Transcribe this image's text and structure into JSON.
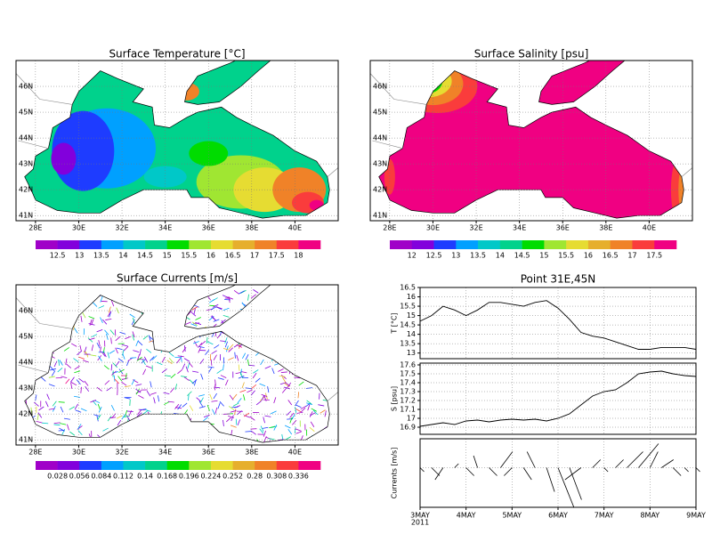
{
  "maps": [
    {
      "title": "Surface Temperature [°C]",
      "lonlim": [
        27.1,
        42
      ],
      "latlim": [
        40.8,
        47
      ],
      "lonticks": [
        {
          "value": 28,
          "label": "28E"
        },
        {
          "value": 30,
          "label": "30E"
        },
        {
          "value": 32,
          "label": "32E"
        },
        {
          "value": 34,
          "label": "34E"
        },
        {
          "value": 36,
          "label": "36E"
        },
        {
          "value": 38,
          "label": "38E"
        },
        {
          "value": 40,
          "label": "40E"
        }
      ],
      "latticks": [
        {
          "value": 41,
          "label": "41N"
        },
        {
          "value": 42,
          "label": "42N"
        },
        {
          "value": 43,
          "label": "43N"
        },
        {
          "value": 44,
          "label": "44N"
        },
        {
          "value": 45,
          "label": "45N"
        },
        {
          "value": 46,
          "label": "46N"
        }
      ],
      "colorbar": {
        "colors": [
          "#a000c8",
          "#8200dc",
          "#1e3cff",
          "#00a0ff",
          "#00c8c8",
          "#00d28c",
          "#00dc00",
          "#a0e632",
          "#e6dc32",
          "#e6af2d",
          "#f08228",
          "#fa3c3c",
          "#f00082"
        ],
        "labels": [
          12.5,
          13,
          13.5,
          14,
          14.5,
          15,
          15.5,
          16,
          16.5,
          17,
          17.5,
          18
        ]
      }
    },
    {
      "title": "Surface Salinity [psu]",
      "lonlim": [
        27.1,
        42
      ],
      "latlim": [
        40.8,
        47
      ],
      "lonticks": [
        {
          "value": 28,
          "label": "28E"
        },
        {
          "value": 30,
          "label": "30E"
        },
        {
          "value": 32,
          "label": "32E"
        },
        {
          "value": 34,
          "label": "34E"
        },
        {
          "value": 36,
          "label": "36E"
        },
        {
          "value": 38,
          "label": "38E"
        },
        {
          "value": 40,
          "label": "40E"
        }
      ],
      "latticks": [
        {
          "value": 41,
          "label": "41N"
        },
        {
          "value": 42,
          "label": "42N"
        },
        {
          "value": 43,
          "label": "43N"
        },
        {
          "value": 44,
          "label": "44N"
        },
        {
          "value": 45,
          "label": "45N"
        },
        {
          "value": 46,
          "label": "46N"
        }
      ],
      "colorbar": {
        "colors": [
          "#a000c8",
          "#8200dc",
          "#1e3cff",
          "#00a0ff",
          "#00c8c8",
          "#00d28c",
          "#00dc00",
          "#a0e632",
          "#e6dc32",
          "#e6af2d",
          "#f08228",
          "#fa3c3c",
          "#f00082"
        ],
        "labels": [
          12,
          12.5,
          13,
          13.5,
          14,
          14.5,
          15,
          15.5,
          16,
          16.5,
          17,
          17.5
        ]
      }
    },
    {
      "title": "Surface Currents [m/s]",
      "lonlim": [
        27.1,
        42
      ],
      "latlim": [
        40.8,
        47
      ],
      "lonticks": [
        {
          "value": 28,
          "label": "28E"
        },
        {
          "value": 30,
          "label": "30E"
        },
        {
          "value": 32,
          "label": "32E"
        },
        {
          "value": 34,
          "label": "34E"
        },
        {
          "value": 36,
          "label": "36E"
        },
        {
          "value": 38,
          "label": "38E"
        },
        {
          "value": 40,
          "label": "40E"
        }
      ],
      "latticks": [
        {
          "value": 41,
          "label": "41N"
        },
        {
          "value": 42,
          "label": "42N"
        },
        {
          "value": 43,
          "label": "43N"
        },
        {
          "value": 44,
          "label": "44N"
        },
        {
          "value": 45,
          "label": "45N"
        },
        {
          "value": 46,
          "label": "46N"
        }
      ],
      "colorbar": {
        "colors": [
          "#a000c8",
          "#8200dc",
          "#1e3cff",
          "#00a0ff",
          "#00c8c8",
          "#00d28c",
          "#00dc00",
          "#a0e632",
          "#e6dc32",
          "#e6af2d",
          "#f08228",
          "#fa3c3c",
          "#f00082"
        ],
        "labels": [
          0.028,
          0.056,
          0.084,
          0.112,
          0.14,
          0.168,
          0.196,
          0.224,
          0.252,
          0.28,
          0.308,
          0.336
        ]
      }
    }
  ],
  "point": {
    "title": "Point 31E,45N",
    "xlim": [
      3,
      9
    ],
    "xticks": [
      {
        "value": 3,
        "label": "3MAY"
      },
      {
        "value": 4,
        "label": "4MAY"
      },
      {
        "value": 5,
        "label": "5MAY"
      },
      {
        "value": 6,
        "label": "6MAY"
      },
      {
        "value": 7,
        "label": "7MAY"
      },
      {
        "value": 8,
        "label": "8MAY"
      },
      {
        "value": 9,
        "label": "9MAY"
      }
    ],
    "year": "2011",
    "x": [
      3,
      3.25,
      3.5,
      3.75,
      4,
      4.25,
      4.5,
      4.75,
      5,
      5.25,
      5.5,
      5.75,
      6,
      6.25,
      6.5,
      6.75,
      7,
      7.25,
      7.5,
      7.75,
      8,
      8.25,
      8.5,
      8.75,
      9
    ],
    "panels": [
      {
        "ylabel": "T [°C]",
        "ylim": [
          12.7,
          16.5
        ],
        "yticks": [
          13,
          13.5,
          14,
          14.5,
          15,
          15.5,
          16,
          16.5
        ],
        "values": [
          14.7,
          15.0,
          15.5,
          15.3,
          15.0,
          15.3,
          15.7,
          15.7,
          15.6,
          15.5,
          15.7,
          15.8,
          15.4,
          14.8,
          14.1,
          13.9,
          13.8,
          13.6,
          13.4,
          13.2,
          13.2,
          13.3,
          13.3,
          13.3,
          13.2
        ]
      },
      {
        "ylabel": "S [psu]",
        "ylim": [
          16.82,
          17.62
        ],
        "yticks": [
          16.9,
          17,
          17.1,
          17.2,
          17.3,
          17.4,
          17.5,
          17.6
        ],
        "values": [
          16.91,
          16.93,
          16.95,
          16.93,
          16.97,
          16.98,
          16.96,
          16.98,
          16.99,
          16.98,
          16.99,
          16.97,
          17.0,
          17.05,
          17.15,
          17.25,
          17.3,
          17.32,
          17.4,
          17.5,
          17.52,
          17.53,
          17.5,
          17.48,
          17.47
        ]
      },
      {
        "ylabel": "Currents [m/s]",
        "u": [
          0.05,
          0.1,
          -0.1,
          0.05,
          0.1,
          -0.05,
          0.1,
          0.15,
          -0.1,
          0.1,
          -0.1,
          0.1,
          0.2,
          0.15,
          -0.2,
          0.1,
          0.05,
          0.1,
          0.2,
          0.25,
          0.1,
          0.15,
          0.1,
          0.05,
          0.05
        ],
        "v": [
          -0.05,
          -0.1,
          -0.15,
          0.05,
          -0.1,
          0.15,
          -0.1,
          0.2,
          -0.1,
          -0.15,
          0.2,
          -0.3,
          -0.5,
          -0.4,
          -0.15,
          0.1,
          -0.05,
          0.1,
          0.2,
          0.3,
          0.2,
          0.1,
          -0.1,
          -0.05,
          -0.05
        ]
      }
    ]
  }
}
